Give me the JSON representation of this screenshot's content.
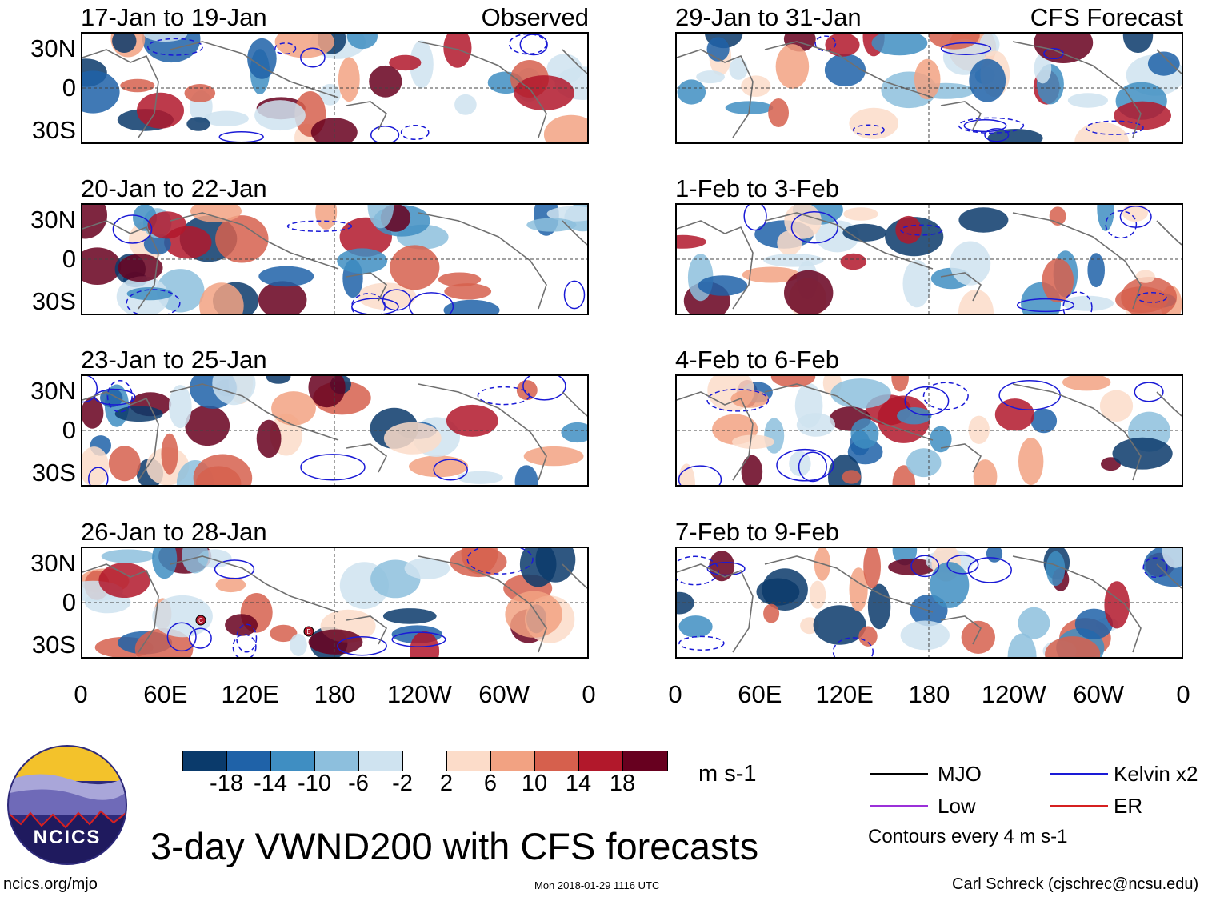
{
  "title": "3-day VWND200 with CFS forecasts",
  "panels": [
    {
      "date": "17-Jan to 19-Jan",
      "label": "Observed"
    },
    {
      "date": "29-Jan to 31-Jan",
      "label": "CFS Forecast"
    },
    {
      "date": "20-Jan to 22-Jan",
      "label": ""
    },
    {
      "date": "1-Feb to 3-Feb",
      "label": ""
    },
    {
      "date": "23-Jan to 25-Jan",
      "label": ""
    },
    {
      "date": "4-Feb to 6-Feb",
      "label": ""
    },
    {
      "date": "26-Jan to 28-Jan",
      "label": ""
    },
    {
      "date": "7-Feb to 9-Feb",
      "label": ""
    }
  ],
  "lat_labels": [
    "30N",
    "0",
    "30S"
  ],
  "lon_labels": [
    "0",
    "60E",
    "120E",
    "180",
    "120W",
    "60W",
    "0"
  ],
  "colorbar": {
    "colors": [
      "#0a3a6b",
      "#1f62a8",
      "#3f8ec2",
      "#8dbfdd",
      "#cfe3f0",
      "#ffffff",
      "#fcdcc9",
      "#f2a282",
      "#d6604d",
      "#b2182b",
      "#67001f"
    ],
    "ticks": [
      "-18",
      "-14",
      "-10",
      "-6",
      "-2",
      "2",
      "6",
      "10",
      "14",
      "18"
    ],
    "units": "m s-1"
  },
  "legend": [
    {
      "name": "MJO",
      "color": "#000000"
    },
    {
      "name": "Kelvin x2",
      "color": "#1a1ad6"
    },
    {
      "name": "Low",
      "color": "#9b30d9"
    },
    {
      "name": "ER",
      "color": "#d62020"
    }
  ],
  "contour_note": "Contours every 4 m s-1",
  "logo_text": "NCICS",
  "footer": {
    "url": "ncics.org/mjo",
    "timestamp": "Mon 2018-01-29 1116 UTC",
    "author": "Carl Schreck (cjschrec@ncsu.edu)"
  },
  "storm_markers": [
    "C",
    "B"
  ]
}
